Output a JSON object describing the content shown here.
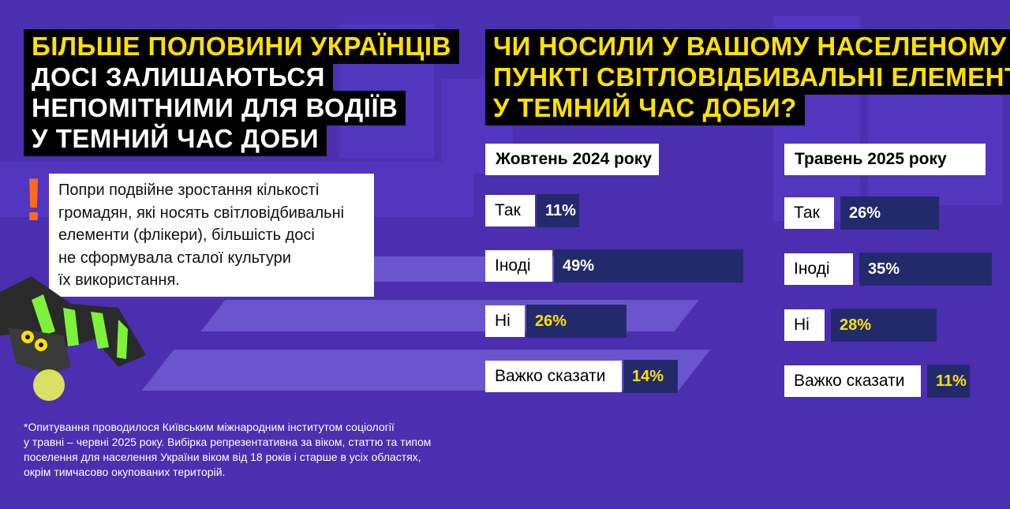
{
  "headline_left": {
    "lines": [
      "БІЛЬШЕ ПОЛОВИНИ УКРАЇНЦІВ",
      "ДОСІ ЗАЛИШАЮТЬСЯ",
      "НЕПОМІТНИМИ ДЛЯ ВОДІЇВ",
      "У ТЕМНИЙ ЧАС ДОБИ"
    ]
  },
  "headline_right": {
    "lines": [
      "ЧИ НОСИЛИ У ВАШОМУ НАСЕЛЕНОМУ",
      "ПУНКТІ СВІТЛОВІДБИВАЛЬНІ ЕЛЕМЕНТИ",
      "У ТЕМНИЙ ЧАС ДОБИ?"
    ]
  },
  "lead": {
    "mark": "!",
    "lines": [
      "Попри подвійне зростання кількості",
      "громадян, які носять світловідбивальні",
      "елементи (флікери), більшість досі",
      "не сформувала сталої культури",
      "їх використання."
    ]
  },
  "footnote": {
    "lines": [
      "*Опитування проводилося Київським міжнародним інститутом соціології",
      "у травні – червні 2025 року. Вибірка репрезентативна за віком, статтю та типом",
      "поселення для населення України віком від 18 років і старше в усіх областях,",
      "окрім тимчасово окупованих територій."
    ]
  },
  "colors": {
    "background": "#4b2fb0",
    "bar": "#232a6b",
    "accent_yellow": "#ffe100",
    "accent_orange": "#ff6a1a"
  },
  "mascot_icon": "reflective-striped-creature-illustration",
  "chart_data": [
    {
      "type": "bar",
      "title": "Жовтень 2024 року",
      "categories": [
        "Так",
        "Іноді",
        "Ні",
        "Важко сказати"
      ],
      "values": [
        11,
        49,
        26,
        14
      ],
      "labels": [
        "11%",
        "49%",
        "26%",
        "14%"
      ]
    },
    {
      "type": "bar",
      "title": "Травень 2025 року",
      "categories": [
        "Так",
        "Іноді",
        "Ні",
        "Важко сказати"
      ],
      "values": [
        26,
        35,
        28,
        11
      ],
      "labels": [
        "26%",
        "35%",
        "28%",
        "11%"
      ]
    }
  ]
}
